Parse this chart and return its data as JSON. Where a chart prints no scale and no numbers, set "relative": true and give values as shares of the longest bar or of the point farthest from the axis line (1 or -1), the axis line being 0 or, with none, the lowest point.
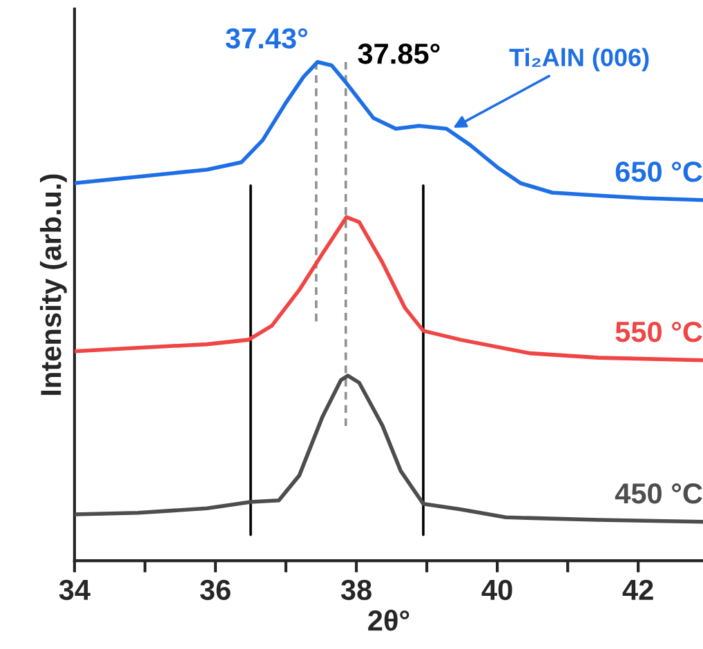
{
  "chart_data": {
    "type": "line",
    "relative": true,
    "xlabel": "2θ°",
    "ylabel": "Intensity (arb.u.)",
    "xlim": [
      34,
      42.92
    ],
    "xticks": [
      34,
      {
        "value": 35,
        "label": null
      },
      36,
      {
        "value": 37,
        "label": null
      },
      38,
      {
        "value": 39,
        "label": null
      },
      40,
      {
        "value": 41,
        "label": null
      },
      42
    ],
    "grid": false,
    "legend": false,
    "marker": "none",
    "series": [
      {
        "name": "450 °C",
        "color": "#4d4d4d",
        "x": [
          34.0,
          34.9,
          35.88,
          36.5,
          36.9,
          37.19,
          37.52,
          37.78,
          37.88,
          38.04,
          38.37,
          38.63,
          38.95,
          39.48,
          40.12,
          41.44,
          42.92
        ],
        "values": [
          0.093,
          0.096,
          0.105,
          0.118,
          0.121,
          0.171,
          0.289,
          0.362,
          0.371,
          0.357,
          0.271,
          0.18,
          0.114,
          0.103,
          0.087,
          0.082,
          0.078
        ]
      },
      {
        "name": "550 °C",
        "color": "#f04545",
        "x": [
          34.0,
          34.9,
          35.88,
          36.47,
          36.8,
          37.19,
          37.52,
          37.86,
          38.04,
          38.37,
          38.69,
          38.95,
          39.48,
          40.46,
          41.44,
          42.92
        ],
        "values": [
          0.42,
          0.427,
          0.434,
          0.443,
          0.471,
          0.543,
          0.616,
          0.689,
          0.679,
          0.598,
          0.507,
          0.461,
          0.443,
          0.416,
          0.407,
          0.402
        ]
      },
      {
        "name": "650 °C",
        "color": "#1e6fe6",
        "x": [
          34.0,
          34.9,
          35.88,
          36.37,
          36.67,
          36.99,
          37.25,
          37.45,
          37.65,
          37.84,
          38.24,
          38.56,
          38.89,
          39.28,
          39.61,
          40.0,
          40.33,
          40.78,
          41.44,
          42.09,
          42.92
        ],
        "values": [
          0.757,
          0.77,
          0.784,
          0.799,
          0.843,
          0.916,
          0.97,
          1.0,
          0.993,
          0.961,
          0.888,
          0.866,
          0.872,
          0.866,
          0.834,
          0.789,
          0.757,
          0.738,
          0.732,
          0.727,
          0.723
        ]
      },
      {
        "color": "#000000",
        "line_style": "solid",
        "x": [
          36.5,
          36.5
        ],
        "values": [
          0.752,
          0.052
        ]
      },
      {
        "color": "#000000",
        "line_style": "solid",
        "x": [
          38.95,
          38.95
        ],
        "values": [
          0.752,
          0.052
        ]
      },
      {
        "color": "#909090",
        "line_style": "dashed",
        "x": [
          37.43,
          37.43
        ],
        "values": [
          1.0,
          0.48
        ]
      },
      {
        "color": "#909090",
        "line_style": "dashed",
        "x": [
          37.85,
          37.85
        ],
        "values": [
          1.0,
          0.27
        ]
      }
    ],
    "annotations": [
      {
        "text": "37.43°",
        "x": 37.43,
        "y": 1.0
      },
      {
        "text": "37.85°",
        "x": 37.85,
        "y": 1.0
      },
      {
        "text": "Ti₂AlN (006)",
        "x": 39.35,
        "y": 0.866
      }
    ]
  }
}
